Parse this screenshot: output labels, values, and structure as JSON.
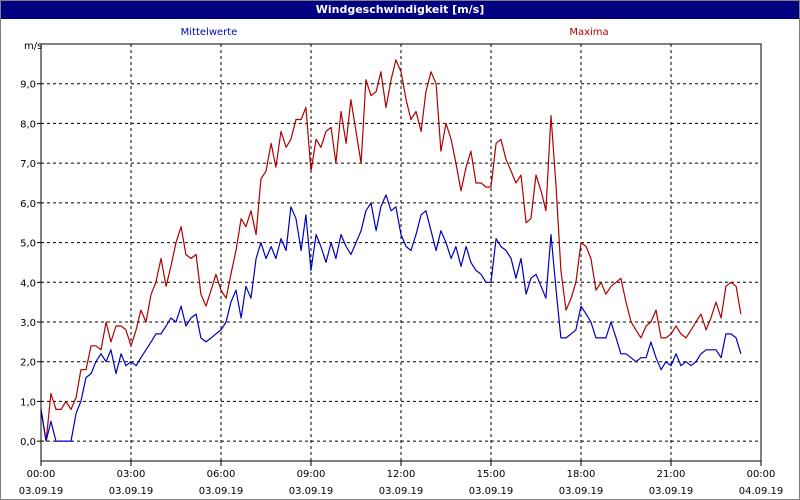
{
  "window": {
    "title": "Windgeschwindigkeit [m/s]"
  },
  "chart_data": {
    "type": "line",
    "title": "Windgeschwindigkeit [m/s]",
    "ylabel": "m/s",
    "xlabel": "",
    "ylim": [
      -0.5,
      10.0
    ],
    "xlim_hours": [
      0,
      24
    ],
    "grid": true,
    "y_ticks": [
      "0,0",
      "1,0",
      "2,0",
      "3,0",
      "4,0",
      "5,0",
      "6,0",
      "7,0",
      "8,0",
      "9,0"
    ],
    "x_ticks": [
      {
        "time": "00:00",
        "date": "03.09.19"
      },
      {
        "time": "03:00",
        "date": "03.09.19"
      },
      {
        "time": "06:00",
        "date": "03.09.19"
      },
      {
        "time": "09:00",
        "date": "03.09.19"
      },
      {
        "time": "12:00",
        "date": "03.09.19"
      },
      {
        "time": "15:00",
        "date": "03.09.19"
      },
      {
        "time": "18:00",
        "date": "03.09.19"
      },
      {
        "time": "21:00",
        "date": "03.09.19"
      },
      {
        "time": "00:00",
        "date": "04.09.19"
      }
    ],
    "colors": {
      "mittelwerte": "#0000c0",
      "maxima": "#b00000"
    },
    "series": [
      {
        "name": "Mittelwerte",
        "color": "#0000c0",
        "points": [
          [
            0.0,
            0.8
          ],
          [
            0.17,
            0.0
          ],
          [
            0.33,
            0.5
          ],
          [
            0.5,
            0.0
          ],
          [
            0.67,
            0.0
          ],
          [
            0.83,
            0.0
          ],
          [
            1.0,
            0.0
          ],
          [
            1.17,
            0.7
          ],
          [
            1.33,
            1.0
          ],
          [
            1.5,
            1.6
          ],
          [
            1.67,
            1.7
          ],
          [
            1.83,
            2.0
          ],
          [
            2.0,
            2.2
          ],
          [
            2.17,
            2.0
          ],
          [
            2.33,
            2.3
          ],
          [
            2.5,
            1.7
          ],
          [
            2.67,
            2.2
          ],
          [
            2.83,
            1.9
          ],
          [
            3.0,
            2.0
          ],
          [
            3.17,
            1.9
          ],
          [
            3.33,
            2.1
          ],
          [
            3.5,
            2.3
          ],
          [
            3.67,
            2.5
          ],
          [
            3.83,
            2.7
          ],
          [
            4.0,
            2.7
          ],
          [
            4.17,
            2.9
          ],
          [
            4.33,
            3.1
          ],
          [
            4.5,
            3.0
          ],
          [
            4.67,
            3.4
          ],
          [
            4.83,
            2.9
          ],
          [
            5.0,
            3.1
          ],
          [
            5.17,
            3.2
          ],
          [
            5.33,
            2.6
          ],
          [
            5.5,
            2.5
          ],
          [
            5.67,
            2.6
          ],
          [
            5.83,
            2.7
          ],
          [
            6.0,
            2.8
          ],
          [
            6.17,
            3.0
          ],
          [
            6.33,
            3.5
          ],
          [
            6.5,
            3.8
          ],
          [
            6.67,
            3.1
          ],
          [
            6.83,
            3.9
          ],
          [
            7.0,
            3.6
          ],
          [
            7.17,
            4.6
          ],
          [
            7.33,
            5.0
          ],
          [
            7.5,
            4.6
          ],
          [
            7.67,
            4.9
          ],
          [
            7.83,
            4.6
          ],
          [
            8.0,
            5.1
          ],
          [
            8.17,
            4.8
          ],
          [
            8.33,
            5.9
          ],
          [
            8.5,
            5.6
          ],
          [
            8.67,
            4.8
          ],
          [
            8.83,
            5.7
          ],
          [
            9.0,
            4.3
          ],
          [
            9.17,
            5.2
          ],
          [
            9.33,
            4.9
          ],
          [
            9.5,
            4.5
          ],
          [
            9.67,
            5.0
          ],
          [
            9.83,
            4.6
          ],
          [
            10.0,
            5.2
          ],
          [
            10.17,
            4.9
          ],
          [
            10.33,
            4.7
          ],
          [
            10.5,
            5.0
          ],
          [
            10.67,
            5.3
          ],
          [
            10.83,
            5.8
          ],
          [
            11.0,
            6.0
          ],
          [
            11.17,
            5.3
          ],
          [
            11.33,
            5.9
          ],
          [
            11.5,
            6.2
          ],
          [
            11.67,
            5.8
          ],
          [
            11.83,
            5.9
          ],
          [
            12.0,
            5.2
          ],
          [
            12.17,
            4.9
          ],
          [
            12.33,
            4.8
          ],
          [
            12.5,
            5.2
          ],
          [
            12.67,
            5.7
          ],
          [
            12.83,
            5.8
          ],
          [
            13.0,
            5.3
          ],
          [
            13.17,
            4.8
          ],
          [
            13.33,
            5.3
          ],
          [
            13.5,
            5.0
          ],
          [
            13.67,
            4.6
          ],
          [
            13.83,
            4.9
          ],
          [
            14.0,
            4.4
          ],
          [
            14.17,
            4.9
          ],
          [
            14.33,
            4.5
          ],
          [
            14.5,
            4.3
          ],
          [
            14.67,
            4.2
          ],
          [
            14.83,
            4.0
          ],
          [
            15.0,
            4.0
          ],
          [
            15.17,
            5.1
          ],
          [
            15.33,
            4.9
          ],
          [
            15.5,
            4.8
          ],
          [
            15.67,
            4.6
          ],
          [
            15.83,
            4.1
          ],
          [
            16.0,
            4.6
          ],
          [
            16.17,
            3.7
          ],
          [
            16.33,
            4.1
          ],
          [
            16.5,
            4.2
          ],
          [
            16.67,
            3.9
          ],
          [
            16.83,
            3.6
          ],
          [
            17.0,
            5.2
          ],
          [
            17.17,
            3.8
          ],
          [
            17.33,
            2.6
          ],
          [
            17.5,
            2.6
          ],
          [
            17.67,
            2.7
          ],
          [
            17.83,
            2.8
          ],
          [
            18.0,
            3.4
          ],
          [
            18.17,
            3.2
          ],
          [
            18.33,
            3.0
          ],
          [
            18.5,
            2.6
          ],
          [
            18.67,
            2.6
          ],
          [
            18.83,
            2.6
          ],
          [
            19.0,
            3.0
          ],
          [
            19.17,
            2.6
          ],
          [
            19.33,
            2.2
          ],
          [
            19.5,
            2.2
          ],
          [
            19.67,
            2.1
          ],
          [
            19.83,
            2.0
          ],
          [
            20.0,
            2.1
          ],
          [
            20.17,
            2.1
          ],
          [
            20.33,
            2.5
          ],
          [
            20.5,
            2.1
          ],
          [
            20.67,
            1.8
          ],
          [
            20.83,
            2.0
          ],
          [
            21.0,
            1.9
          ],
          [
            21.17,
            2.2
          ],
          [
            21.33,
            1.9
          ],
          [
            21.5,
            2.0
          ],
          [
            21.67,
            1.9
          ],
          [
            21.83,
            2.0
          ],
          [
            22.0,
            2.2
          ],
          [
            22.17,
            2.3
          ],
          [
            22.33,
            2.3
          ],
          [
            22.5,
            2.3
          ],
          [
            22.67,
            2.1
          ],
          [
            22.83,
            2.7
          ],
          [
            23.0,
            2.7
          ],
          [
            23.17,
            2.6
          ],
          [
            23.33,
            2.2
          ]
        ]
      },
      {
        "name": "Maxima",
        "color": "#b00000",
        "points": [
          [
            0.0,
            0.8
          ],
          [
            0.17,
            0.0
          ],
          [
            0.33,
            1.2
          ],
          [
            0.5,
            0.8
          ],
          [
            0.67,
            0.8
          ],
          [
            0.83,
            1.0
          ],
          [
            1.0,
            0.8
          ],
          [
            1.17,
            1.1
          ],
          [
            1.33,
            1.8
          ],
          [
            1.5,
            1.8
          ],
          [
            1.67,
            2.4
          ],
          [
            1.83,
            2.4
          ],
          [
            2.0,
            2.3
          ],
          [
            2.17,
            3.0
          ],
          [
            2.33,
            2.5
          ],
          [
            2.5,
            2.9
          ],
          [
            2.67,
            2.9
          ],
          [
            2.83,
            2.8
          ],
          [
            3.0,
            2.4
          ],
          [
            3.17,
            2.8
          ],
          [
            3.33,
            3.3
          ],
          [
            3.5,
            3.0
          ],
          [
            3.67,
            3.7
          ],
          [
            3.83,
            4.0
          ],
          [
            4.0,
            4.6
          ],
          [
            4.17,
            3.9
          ],
          [
            4.33,
            4.4
          ],
          [
            4.5,
            5.0
          ],
          [
            4.67,
            5.4
          ],
          [
            4.83,
            4.7
          ],
          [
            5.0,
            4.6
          ],
          [
            5.17,
            4.7
          ],
          [
            5.33,
            3.7
          ],
          [
            5.5,
            3.4
          ],
          [
            5.67,
            3.8
          ],
          [
            5.83,
            4.2
          ],
          [
            6.0,
            3.8
          ],
          [
            6.17,
            3.6
          ],
          [
            6.33,
            4.2
          ],
          [
            6.5,
            4.8
          ],
          [
            6.67,
            5.6
          ],
          [
            6.83,
            5.4
          ],
          [
            7.0,
            5.8
          ],
          [
            7.17,
            5.2
          ],
          [
            7.33,
            6.6
          ],
          [
            7.5,
            6.8
          ],
          [
            7.67,
            7.5
          ],
          [
            7.83,
            6.9
          ],
          [
            8.0,
            7.8
          ],
          [
            8.17,
            7.4
          ],
          [
            8.33,
            7.6
          ],
          [
            8.5,
            8.1
          ],
          [
            8.67,
            8.1
          ],
          [
            8.83,
            8.4
          ],
          [
            9.0,
            6.8
          ],
          [
            9.17,
            7.6
          ],
          [
            9.33,
            7.4
          ],
          [
            9.5,
            7.8
          ],
          [
            9.67,
            7.9
          ],
          [
            9.83,
            7.0
          ],
          [
            10.0,
            8.3
          ],
          [
            10.17,
            7.5
          ],
          [
            10.33,
            8.6
          ],
          [
            10.5,
            7.8
          ],
          [
            10.67,
            7.0
          ],
          [
            10.83,
            9.1
          ],
          [
            11.0,
            8.7
          ],
          [
            11.17,
            8.8
          ],
          [
            11.33,
            9.3
          ],
          [
            11.5,
            8.4
          ],
          [
            11.67,
            9.1
          ],
          [
            11.83,
            9.6
          ],
          [
            12.0,
            9.3
          ],
          [
            12.17,
            8.6
          ],
          [
            12.33,
            8.1
          ],
          [
            12.5,
            8.3
          ],
          [
            12.67,
            7.8
          ],
          [
            12.83,
            8.8
          ],
          [
            13.0,
            9.3
          ],
          [
            13.17,
            9.0
          ],
          [
            13.33,
            7.3
          ],
          [
            13.5,
            8.0
          ],
          [
            13.67,
            7.6
          ],
          [
            13.83,
            7.0
          ],
          [
            14.0,
            6.3
          ],
          [
            14.17,
            6.9
          ],
          [
            14.33,
            7.3
          ],
          [
            14.5,
            6.5
          ],
          [
            14.67,
            6.5
          ],
          [
            14.83,
            6.4
          ],
          [
            15.0,
            6.4
          ],
          [
            15.17,
            7.5
          ],
          [
            15.33,
            7.6
          ],
          [
            15.5,
            7.1
          ],
          [
            15.67,
            6.8
          ],
          [
            15.83,
            6.5
          ],
          [
            16.0,
            6.7
          ],
          [
            16.17,
            5.5
          ],
          [
            16.33,
            5.6
          ],
          [
            16.5,
            6.7
          ],
          [
            16.67,
            6.3
          ],
          [
            16.83,
            5.8
          ],
          [
            17.0,
            8.2
          ],
          [
            17.17,
            6.4
          ],
          [
            17.33,
            4.3
          ],
          [
            17.5,
            3.3
          ],
          [
            17.67,
            3.6
          ],
          [
            17.83,
            4.0
          ],
          [
            18.0,
            5.0
          ],
          [
            18.17,
            4.9
          ],
          [
            18.33,
            4.6
          ],
          [
            18.5,
            3.8
          ],
          [
            18.67,
            4.0
          ],
          [
            18.83,
            3.7
          ],
          [
            19.0,
            3.9
          ],
          [
            19.17,
            4.0
          ],
          [
            19.33,
            4.1
          ],
          [
            19.5,
            3.5
          ],
          [
            19.67,
            3.0
          ],
          [
            19.83,
            2.8
          ],
          [
            20.0,
            2.6
          ],
          [
            20.17,
            2.9
          ],
          [
            20.33,
            3.0
          ],
          [
            20.5,
            3.3
          ],
          [
            20.67,
            2.6
          ],
          [
            20.83,
            2.6
          ],
          [
            21.0,
            2.7
          ],
          [
            21.17,
            2.9
          ],
          [
            21.33,
            2.7
          ],
          [
            21.5,
            2.6
          ],
          [
            21.67,
            2.8
          ],
          [
            21.83,
            3.0
          ],
          [
            22.0,
            3.2
          ],
          [
            22.17,
            2.8
          ],
          [
            22.33,
            3.1
          ],
          [
            22.5,
            3.5
          ],
          [
            22.67,
            3.1
          ],
          [
            22.83,
            3.9
          ],
          [
            23.0,
            4.0
          ],
          [
            23.17,
            3.9
          ],
          [
            23.33,
            3.2
          ]
        ]
      }
    ]
  }
}
